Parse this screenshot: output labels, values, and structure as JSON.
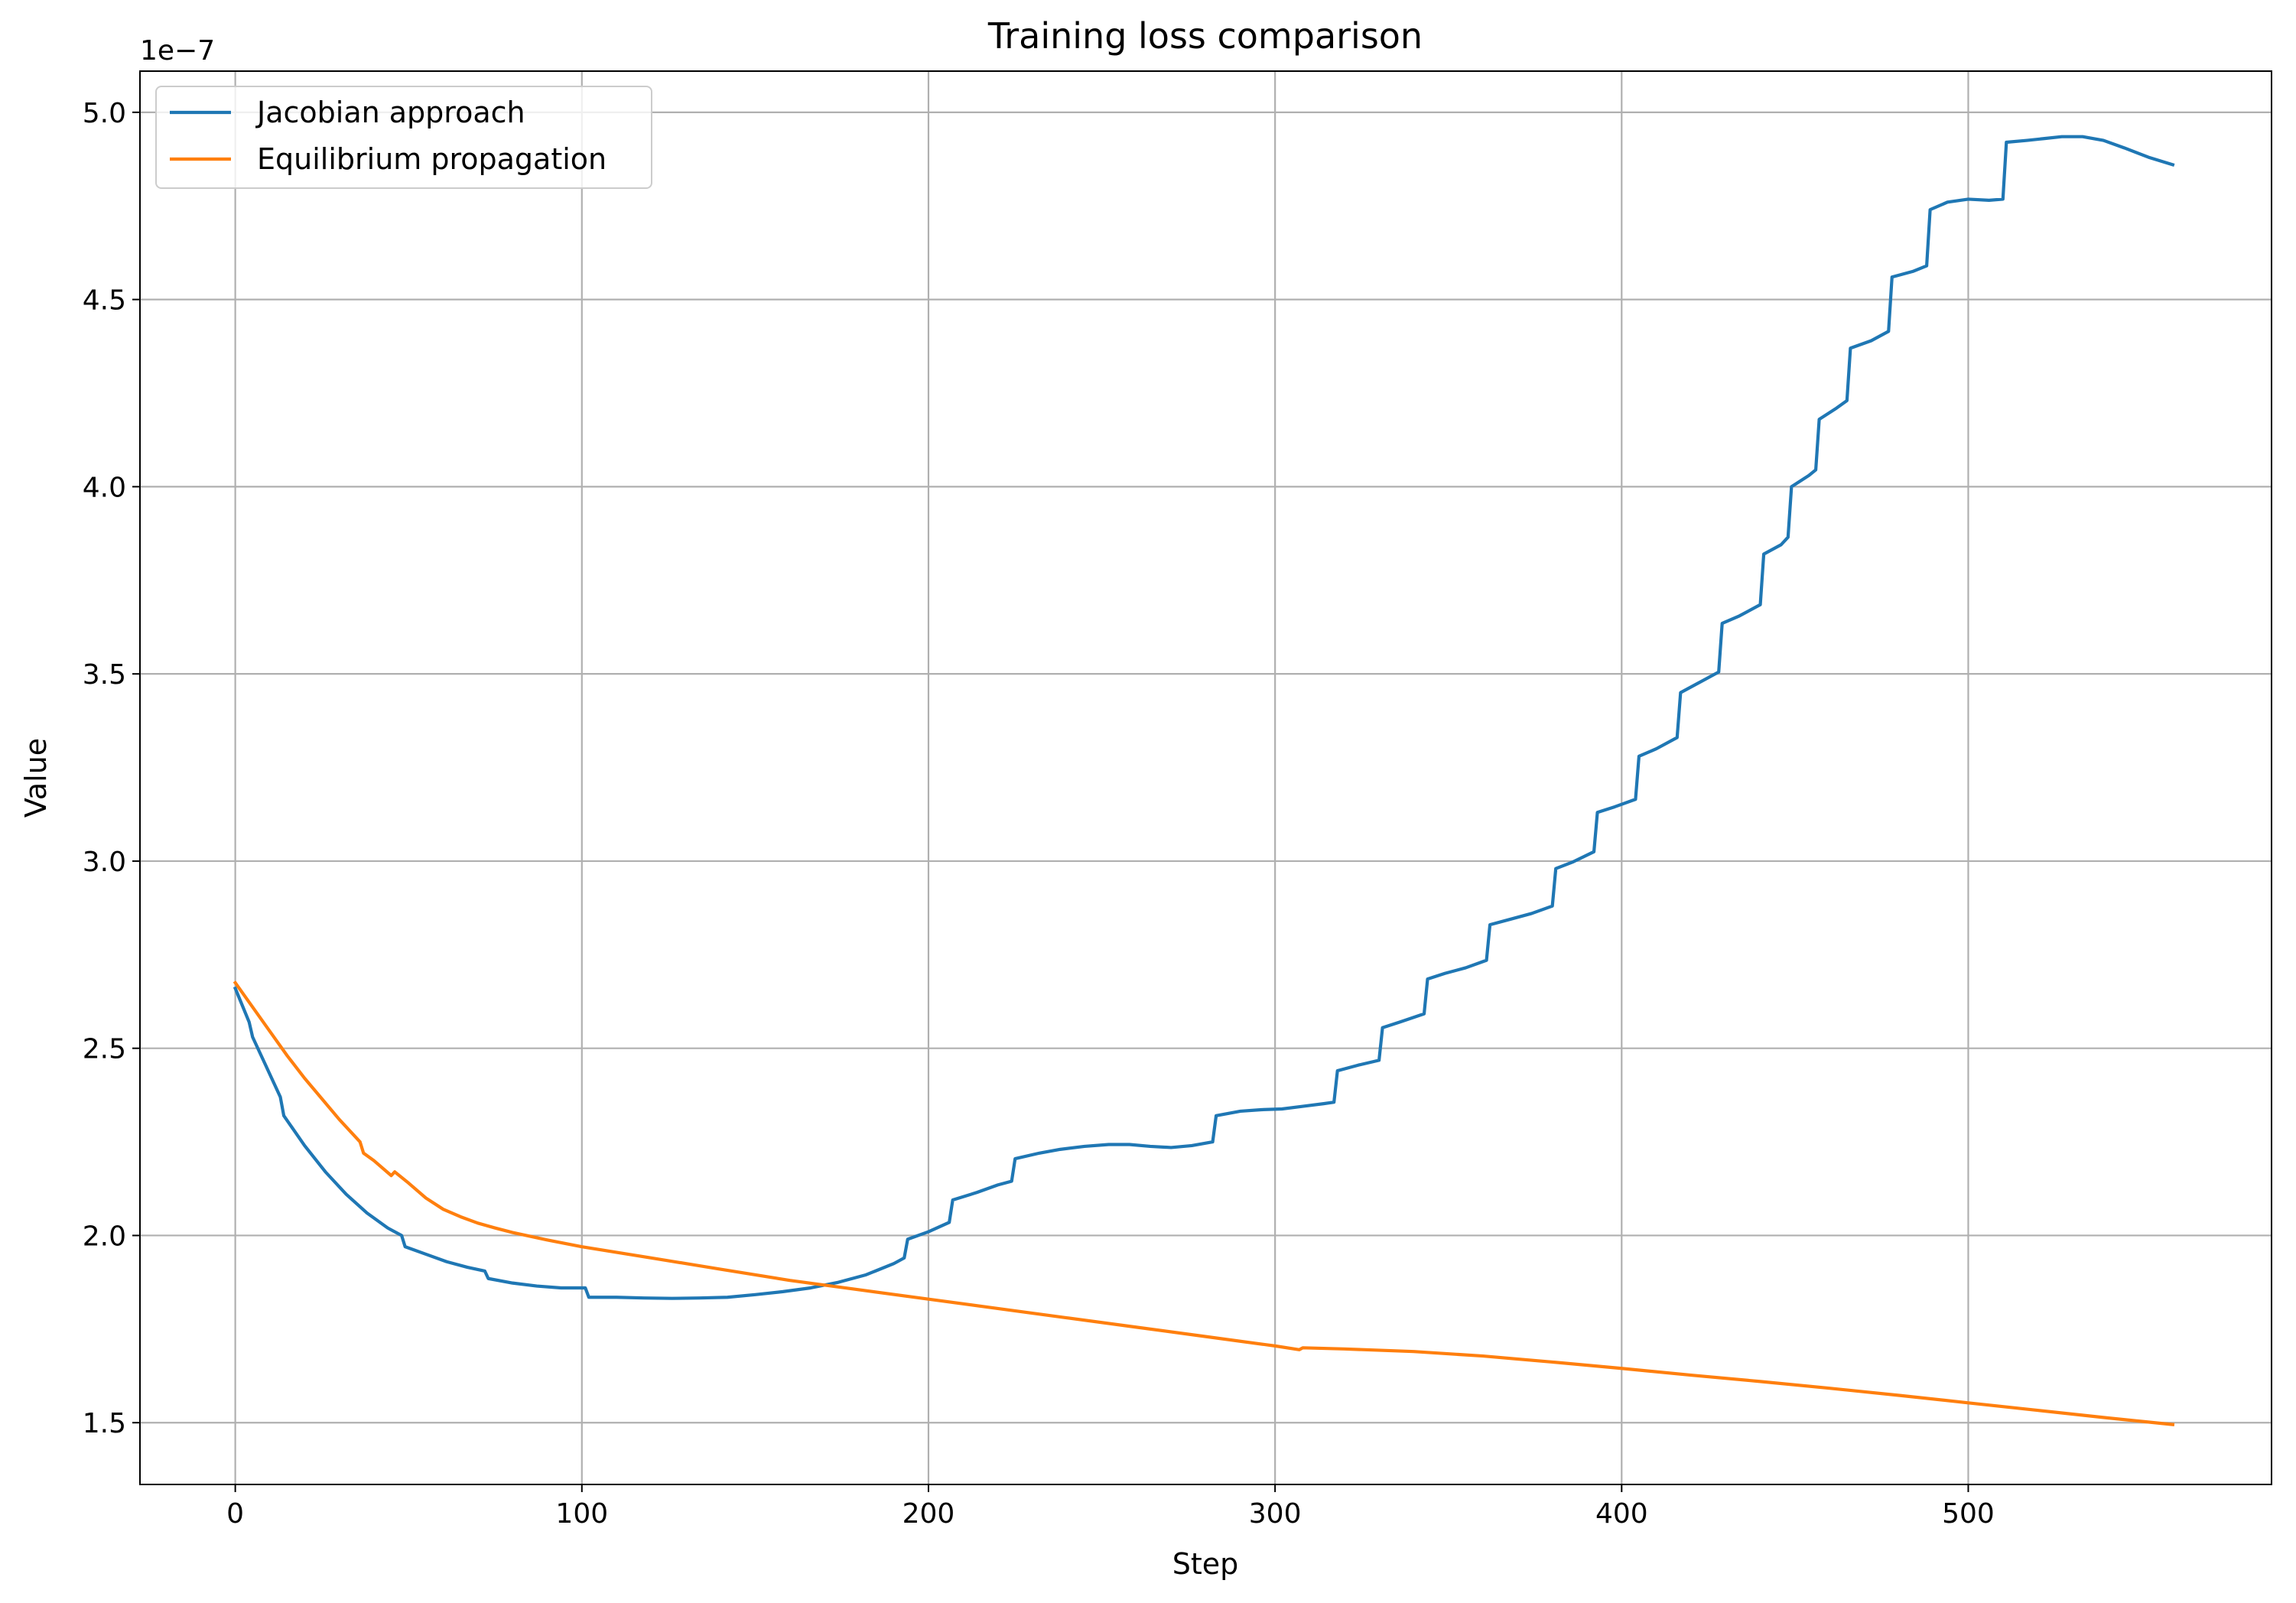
{
  "chart_data": {
    "type": "line",
    "title": "Training loss comparison",
    "xlabel": "Step",
    "ylabel": "Value",
    "y_offset_text": "1e−7",
    "y_scale_factor": 1e-07,
    "xlim": [
      -27.5,
      587.5
    ],
    "ylim": [
      1.335,
      5.11
    ],
    "xticks": [
      0,
      100,
      200,
      300,
      400,
      500
    ],
    "xtick_labels": [
      "0",
      "100",
      "200",
      "300",
      "400",
      "500"
    ],
    "yticks": [
      1.5,
      2.0,
      2.5,
      3.0,
      3.5,
      4.0,
      4.5,
      5.0
    ],
    "ytick_labels": [
      "1.5",
      "2.0",
      "2.5",
      "3.0",
      "3.5",
      "4.0",
      "4.5",
      "5.0"
    ],
    "grid": true,
    "legend_position": "top-left",
    "series": [
      {
        "name": "Jacobian approach",
        "color": "#1f77b4",
        "x": [
          0,
          4,
          5,
          9,
          13,
          14,
          20,
          26,
          32,
          38,
          44,
          48,
          49,
          55,
          61,
          67,
          72,
          73,
          80,
          87,
          94,
          101,
          102,
          110,
          118,
          126,
          134,
          142,
          150,
          158,
          166,
          174,
          182,
          190,
          193,
          194,
          200,
          206,
          207,
          214,
          220,
          224,
          225,
          232,
          238,
          245,
          252,
          258,
          264,
          270,
          276,
          282,
          283,
          290,
          296,
          302,
          308,
          314,
          317,
          318,
          324,
          330,
          331,
          336,
          343,
          344,
          349,
          355,
          361,
          362,
          368,
          374,
          380,
          381,
          386,
          392,
          393,
          398,
          404,
          405,
          410,
          416,
          417,
          422,
          428,
          429,
          434,
          440,
          441,
          446,
          448,
          449,
          454,
          456,
          457,
          462,
          465,
          466,
          472,
          477,
          478,
          484,
          488,
          489,
          494,
          500,
          506,
          510,
          511,
          517,
          522,
          527,
          533,
          539,
          545,
          552,
          559
        ],
        "values": [
          2.66,
          2.57,
          2.53,
          2.45,
          2.37,
          2.32,
          2.24,
          2.17,
          2.11,
          2.06,
          2.02,
          2.0,
          1.97,
          1.95,
          1.93,
          1.915,
          1.905,
          1.885,
          1.873,
          1.865,
          1.86,
          1.86,
          1.835,
          1.835,
          1.833,
          1.832,
          1.833,
          1.835,
          1.842,
          1.85,
          1.86,
          1.875,
          1.895,
          1.925,
          1.94,
          1.99,
          2.01,
          2.035,
          2.095,
          2.115,
          2.135,
          2.145,
          2.205,
          2.22,
          2.23,
          2.238,
          2.243,
          2.243,
          2.238,
          2.235,
          2.24,
          2.25,
          2.32,
          2.332,
          2.336,
          2.338,
          2.345,
          2.352,
          2.356,
          2.44,
          2.455,
          2.468,
          2.555,
          2.57,
          2.592,
          2.685,
          2.7,
          2.715,
          2.735,
          2.83,
          2.845,
          2.86,
          2.88,
          2.98,
          2.998,
          3.025,
          3.13,
          3.145,
          3.165,
          3.28,
          3.3,
          3.33,
          3.45,
          3.475,
          3.505,
          3.635,
          3.655,
          3.685,
          3.82,
          3.845,
          3.865,
          4.0,
          4.03,
          4.045,
          4.18,
          4.21,
          4.23,
          4.37,
          4.39,
          4.415,
          4.56,
          4.575,
          4.59,
          4.74,
          4.76,
          4.768,
          4.765,
          4.768,
          4.92,
          4.925,
          4.93,
          4.935,
          4.935,
          4.925,
          4.905,
          4.88,
          4.86
        ]
      },
      {
        "name": "Equilibrium propagation",
        "color": "#ff7f0e",
        "x": [
          0,
          5,
          10,
          15,
          20,
          25,
          30,
          36,
          37,
          40,
          45,
          46,
          50,
          55,
          60,
          65,
          70,
          75,
          80,
          90,
          100,
          120,
          140,
          160,
          180,
          200,
          220,
          240,
          260,
          280,
          300,
          307,
          308,
          320,
          340,
          360,
          380,
          400,
          420,
          440,
          460,
          480,
          500,
          520,
          540,
          559
        ],
        "values": [
          2.675,
          2.61,
          2.545,
          2.48,
          2.42,
          2.365,
          2.31,
          2.25,
          2.22,
          2.2,
          2.16,
          2.17,
          2.14,
          2.1,
          2.07,
          2.05,
          2.033,
          2.02,
          2.008,
          1.988,
          1.97,
          1.94,
          1.91,
          1.88,
          1.855,
          1.83,
          1.805,
          1.78,
          1.755,
          1.73,
          1.705,
          1.695,
          1.7,
          1.697,
          1.69,
          1.678,
          1.662,
          1.645,
          1.627,
          1.61,
          1.592,
          1.573,
          1.553,
          1.533,
          1.513,
          1.495
        ]
      }
    ]
  }
}
